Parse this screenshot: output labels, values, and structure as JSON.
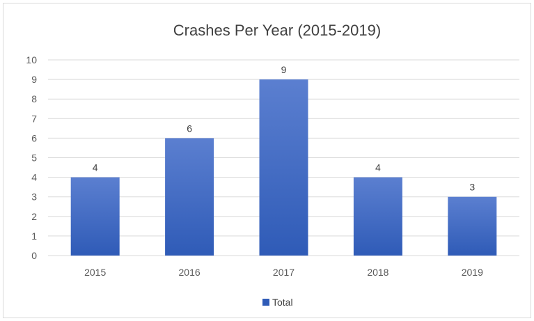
{
  "chart_data": {
    "type": "bar",
    "title": "Crashes Per Year (2015-2019)",
    "categories": [
      "2015",
      "2016",
      "2017",
      "2018",
      "2019"
    ],
    "series": [
      {
        "name": "Total",
        "values": [
          4,
          6,
          9,
          4,
          3
        ]
      }
    ],
    "ylim": [
      0,
      10
    ],
    "yticks": [
      "0",
      "1",
      "2",
      "3",
      "4",
      "5",
      "6",
      "7",
      "8",
      "9",
      "10"
    ],
    "data_labels": [
      "4",
      "6",
      "9",
      "4",
      "3"
    ],
    "grid": true,
    "legend": "bottom",
    "colors": {
      "bar_top": "#5b7fd0",
      "bar_bottom": "#2f5bb7",
      "gridline": "#d9d9d9",
      "axis_text": "#595959"
    }
  }
}
